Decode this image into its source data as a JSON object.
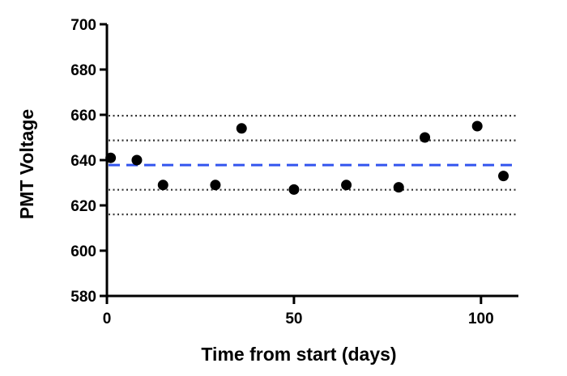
{
  "chart_data": {
    "type": "scatter",
    "title": "",
    "xlabel": "Time from start (days)",
    "ylabel": "PMT Voltage",
    "xlim": [
      0,
      110
    ],
    "ylim": [
      580,
      700
    ],
    "x_ticks": [
      0,
      50,
      100
    ],
    "y_ticks": [
      580,
      600,
      620,
      640,
      660,
      680,
      700
    ],
    "grid": false,
    "series": [
      {
        "x": [
          1,
          8,
          15,
          29,
          36,
          50,
          64,
          78,
          85,
          99,
          106
        ],
        "y": [
          641,
          640,
          629,
          629,
          654,
          627,
          629,
          628,
          650,
          655,
          633
        ]
      }
    ],
    "reference_lines": [
      {
        "y": 637.8,
        "style": "dashed",
        "color": "#3355ee"
      },
      {
        "y": 659.6,
        "style": "dotted",
        "color": "#333333"
      },
      {
        "y": 648.7,
        "style": "dotted",
        "color": "#333333"
      },
      {
        "y": 626.9,
        "style": "dotted",
        "color": "#333333"
      },
      {
        "y": 616.0,
        "style": "dotted",
        "color": "#333333"
      }
    ]
  }
}
